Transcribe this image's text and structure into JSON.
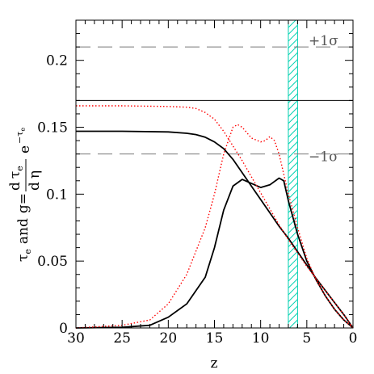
{
  "chart_data": {
    "type": "line",
    "xlabel": "z",
    "ylabel": "τe and g = (dτe/dη) e^(−τe)",
    "ylabel_parts": {
      "tau": "τ",
      "e": "e",
      "and": "and",
      "g": "g",
      "eq": "=",
      "d": "d",
      "eta": "η",
      "exp": "e",
      "minus": "−"
    },
    "xlim": [
      30,
      0
    ],
    "ylim": [
      0,
      0.23
    ],
    "x_reversed": true,
    "x_ticks": [
      30,
      25,
      20,
      15,
      10,
      5,
      0
    ],
    "x_tick_labels": [
      "30",
      "25",
      "20",
      "15",
      "10",
      "5",
      "0"
    ],
    "y_ticks": [
      0,
      0.05,
      0.1,
      0.15,
      0.2
    ],
    "y_tick_labels": [
      "0",
      "0.05",
      "0.1",
      "0.15",
      "0.2"
    ],
    "grid": false,
    "legend": null,
    "reference_lines": [
      {
        "y": 0.21,
        "style": "dashed",
        "label": "+1σ"
      },
      {
        "y": 0.17,
        "style": "solid",
        "label": ""
      },
      {
        "y": 0.13,
        "style": "dashed",
        "label": "−1σ"
      }
    ],
    "shaded_band": {
      "x_from": 6.0,
      "x_to": 7.0,
      "color": "#00d0b0",
      "pattern": "hatched"
    },
    "colors": {
      "black": "#000000",
      "red": "#ff0000",
      "dark_red": "#7a0000",
      "band": "#00d0b0"
    },
    "series": [
      {
        "style": "solid",
        "color": "#000000",
        "points": [
          [
            30,
            0.147
          ],
          [
            25,
            0.147
          ],
          [
            20,
            0.1465
          ],
          [
            18,
            0.1455
          ],
          [
            17,
            0.1445
          ],
          [
            16,
            0.1425
          ],
          [
            15,
            0.139
          ],
          [
            14,
            0.134
          ],
          [
            13,
            0.126
          ],
          [
            12,
            0.116
          ],
          [
            11,
            0.106
          ],
          [
            10,
            0.096
          ],
          [
            9,
            0.086
          ],
          [
            8,
            0.076
          ],
          [
            7,
            0.067
          ],
          [
            6,
            0.057
          ],
          [
            5,
            0.047
          ],
          [
            4,
            0.037
          ],
          [
            3,
            0.028
          ],
          [
            2,
            0.019
          ],
          [
            1,
            0.01
          ],
          [
            0,
            0
          ]
        ]
      },
      {
        "style": "solid",
        "color": "#000000",
        "points": [
          [
            30,
            0
          ],
          [
            25,
            0.0005
          ],
          [
            22,
            0.002
          ],
          [
            20,
            0.008
          ],
          [
            18,
            0.018
          ],
          [
            16,
            0.038
          ],
          [
            15,
            0.06
          ],
          [
            14,
            0.088
          ],
          [
            13,
            0.106
          ],
          [
            12,
            0.111
          ],
          [
            11,
            0.108
          ],
          [
            10,
            0.105
          ],
          [
            9,
            0.107
          ],
          [
            8,
            0.112
          ],
          [
            7.5,
            0.11
          ],
          [
            7,
            0.095
          ],
          [
            6,
            0.07
          ],
          [
            5,
            0.05
          ],
          [
            4,
            0.036
          ],
          [
            3,
            0.024
          ],
          [
            2,
            0.014
          ],
          [
            1,
            0.006
          ],
          [
            0,
            0
          ]
        ]
      },
      {
        "style": "dotted",
        "color": "#ff0000",
        "points": [
          [
            30,
            0.166
          ],
          [
            25,
            0.166
          ],
          [
            20,
            0.1655
          ],
          [
            18,
            0.165
          ],
          [
            17,
            0.164
          ],
          [
            16,
            0.161
          ],
          [
            15,
            0.156
          ],
          [
            14,
            0.147
          ],
          [
            13,
            0.136
          ],
          [
            12,
            0.125
          ],
          [
            11,
            0.113
          ],
          [
            10,
            0.101
          ],
          [
            9,
            0.089
          ],
          [
            8,
            0.077
          ],
          [
            7,
            0.066
          ],
          [
            6,
            0.056
          ],
          [
            5,
            0.046
          ],
          [
            4,
            0.037
          ],
          [
            3,
            0.028
          ],
          [
            2,
            0.019
          ],
          [
            1,
            0.01
          ],
          [
            0,
            0
          ]
        ]
      },
      {
        "style": "dotted",
        "color": "#ff0000",
        "points": [
          [
            30,
            0
          ],
          [
            25,
            0.002
          ],
          [
            22,
            0.006
          ],
          [
            20,
            0.018
          ],
          [
            18,
            0.04
          ],
          [
            16,
            0.075
          ],
          [
            15,
            0.1
          ],
          [
            14,
            0.13
          ],
          [
            13,
            0.15
          ],
          [
            12.5,
            0.152
          ],
          [
            12,
            0.15
          ],
          [
            11,
            0.142
          ],
          [
            10,
            0.139
          ],
          [
            9.5,
            0.14
          ],
          [
            9,
            0.143
          ],
          [
            8.5,
            0.14
          ],
          [
            8,
            0.13
          ],
          [
            7,
            0.1
          ],
          [
            6,
            0.075
          ],
          [
            5,
            0.052
          ],
          [
            4,
            0.036
          ],
          [
            3,
            0.024
          ],
          [
            2,
            0.014
          ],
          [
            1,
            0.006
          ],
          [
            0,
            0
          ]
        ]
      }
    ]
  }
}
